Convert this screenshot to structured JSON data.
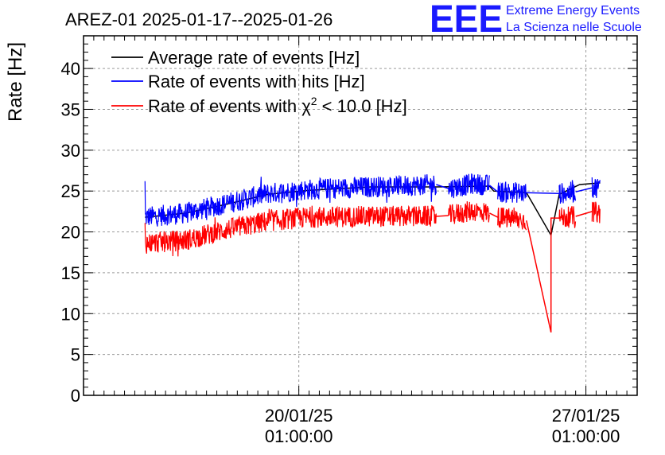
{
  "logo": {
    "letters": "EEE",
    "line1": "Extreme Energy Events",
    "line2": "La Scienza nelle Scuole",
    "color": "#1a1aff"
  },
  "chart_data": {
    "type": "line",
    "title": "AREZ-01 2025-01-17--2025-01-26",
    "ylabel": "Rate [Hz]",
    "xlabel": "",
    "ylim": [
      0,
      44
    ],
    "xlim_days": [
      0,
      13.5
    ],
    "grid": true,
    "legend_position": "top-left",
    "yticks": [
      0,
      5,
      10,
      15,
      20,
      25,
      30,
      35,
      40
    ],
    "xticks": [
      {
        "day": 5.25,
        "date": "20/01/25",
        "time": "01:00:00"
      },
      {
        "day": 12.25,
        "date": "27/01/25",
        "time": "01:00:00"
      }
    ],
    "legend": [
      {
        "label_main": "Average rate of events [Hz]",
        "label_sup": "",
        "label_tail": ""
      },
      {
        "label_main": "Rate of events with hits [Hz]",
        "label_sup": "",
        "label_tail": ""
      },
      {
        "label_main": "Rate of events with χ",
        "label_sup": "2",
        "label_tail": " < 10.0 [Hz]"
      }
    ],
    "series": [
      {
        "name": "Average rate of events [Hz]",
        "color": "#000000",
        "noise": 0,
        "points": [
          [
            1.5,
            21.8
          ],
          [
            2.5,
            22.3
          ],
          [
            3.5,
            23.4
          ],
          [
            4.5,
            24.6
          ],
          [
            5.5,
            25.1
          ],
          [
            7.0,
            25.5
          ],
          [
            8.6,
            25.5
          ],
          [
            9.9,
            25.6
          ],
          [
            10.0,
            25.0
          ],
          [
            10.8,
            24.8
          ],
          [
            11.4,
            19.6
          ],
          [
            11.6,
            24.6
          ],
          [
            12.1,
            25.8
          ],
          [
            12.6,
            26.0
          ]
        ]
      },
      {
        "name": "Rate of events with hits [Hz]",
        "color": "#0000ff",
        "noise": 1.3,
        "segments": [
          [
            [
              1.5,
              21.8
            ],
            [
              2.5,
              22.3
            ],
            [
              3.5,
              23.5
            ],
            [
              4.5,
              24.7
            ],
            [
              5.5,
              25.2
            ],
            [
              7.0,
              25.5
            ],
            [
              8.6,
              25.8
            ]
          ],
          [
            [
              8.9,
              25.3
            ],
            [
              9.5,
              25.9
            ],
            [
              9.9,
              25.7
            ]
          ],
          [
            [
              10.1,
              24.9
            ],
            [
              10.8,
              24.8
            ]
          ],
          [
            [
              11.6,
              24.7
            ],
            [
              12.0,
              24.9
            ]
          ],
          [
            [
              12.4,
              25.4
            ],
            [
              12.6,
              25.5
            ]
          ]
        ],
        "bridges": [
          [
            [
              8.6,
              25.8
            ],
            [
              8.9,
              25.3
            ]
          ],
          [
            [
              9.9,
              25.7
            ],
            [
              10.1,
              24.9
            ]
          ],
          [
            [
              10.8,
              24.8
            ],
            [
              11.6,
              24.7
            ]
          ],
          [
            [
              12.0,
              24.9
            ],
            [
              12.4,
              25.4
            ]
          ]
        ]
      },
      {
        "name": "Rate of events with χ² < 10.0 [Hz]",
        "color": "#ff0000",
        "noise": 1.3,
        "segments": [
          [
            [
              1.5,
              18.6
            ],
            [
              2.5,
              19.0
            ],
            [
              3.5,
              20.3
            ],
            [
              4.5,
              21.3
            ],
            [
              5.5,
              21.8
            ],
            [
              7.0,
              21.9
            ],
            [
              8.6,
              21.9
            ]
          ],
          [
            [
              8.9,
              22.0
            ],
            [
              9.5,
              22.6
            ],
            [
              9.9,
              22.3
            ]
          ],
          [
            [
              10.1,
              21.8
            ],
            [
              10.8,
              21.4
            ]
          ],
          [
            [
              11.6,
              21.7
            ],
            [
              12.0,
              21.9
            ]
          ],
          [
            [
              12.4,
              22.5
            ],
            [
              12.6,
              22.3
            ]
          ]
        ],
        "bridges": [
          [
            [
              8.6,
              21.9
            ],
            [
              8.9,
              22.0
            ]
          ],
          [
            [
              9.9,
              22.3
            ],
            [
              10.1,
              21.8
            ]
          ],
          [
            [
              10.8,
              21.4
            ],
            [
              11.4,
              7.7
            ],
            [
              11.4,
              21.7
            ],
            [
              11.6,
              21.7
            ]
          ],
          [
            [
              12.0,
              21.9
            ],
            [
              12.4,
              22.5
            ]
          ]
        ]
      }
    ]
  }
}
